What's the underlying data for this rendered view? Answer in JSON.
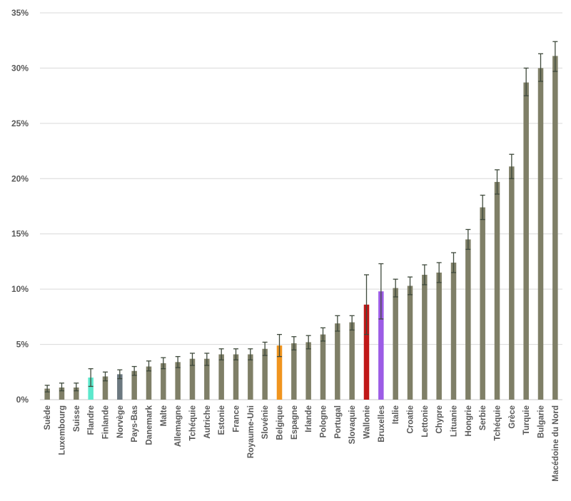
{
  "chart_data": {
    "type": "bar",
    "title": "",
    "xlabel": "",
    "ylabel": "",
    "ylim": [
      0,
      35
    ],
    "yticks": [
      "0%",
      "5%",
      "10%",
      "15%",
      "20%",
      "25%",
      "30%",
      "35%"
    ],
    "ytick_values": [
      0,
      5,
      10,
      15,
      20,
      25,
      30,
      35
    ],
    "grid": true,
    "legend": "none",
    "default_color": "#7f7f67",
    "categories": [
      "Suède",
      "Luxembourg",
      "Suisse",
      "Flandre",
      "Finlande",
      "Norvège",
      "Pays-Bas",
      "Danemark",
      "Malte",
      "Allemagne",
      "Tchéquie",
      "Autriche",
      "Estonie",
      "France",
      "Royaume-Uni",
      "Slovénie",
      "Belgique",
      "Espagne",
      "Irlande",
      "Pologne",
      "Portugal",
      "Slovaquie",
      "Wallonie",
      "Bruxelles",
      "Italie",
      "Croatie",
      "Lettonie",
      "Chypre",
      "Lituanie",
      "Hongrie",
      "Serbie",
      "Tchéquie",
      "Grèce",
      "Turquie",
      "Bulgarie",
      "Macédoine du Nord"
    ],
    "values": [
      1.0,
      1.1,
      1.1,
      2.0,
      2.1,
      2.3,
      2.6,
      3.0,
      3.3,
      3.4,
      3.7,
      3.7,
      4.1,
      4.1,
      4.1,
      4.6,
      4.9,
      5.1,
      5.2,
      5.9,
      6.9,
      7.0,
      8.6,
      9.8,
      10.1,
      10.3,
      11.3,
      11.5,
      12.4,
      14.5,
      17.4,
      19.7,
      21.1,
      28.7,
      30.0,
      31.1
    ],
    "error_low": [
      0.7,
      0.8,
      0.8,
      1.2,
      1.7,
      1.9,
      2.2,
      2.6,
      2.8,
      2.9,
      3.1,
      3.1,
      3.6,
      3.6,
      3.6,
      4.0,
      3.9,
      4.5,
      4.6,
      5.3,
      6.2,
      6.3,
      5.9,
      7.3,
      9.3,
      9.5,
      10.4,
      10.6,
      11.5,
      13.6,
      16.3,
      18.6,
      20.0,
      27.5,
      28.8,
      29.7
    ],
    "error_high": [
      1.3,
      1.5,
      1.5,
      2.8,
      2.5,
      2.7,
      3.0,
      3.5,
      3.8,
      3.9,
      4.2,
      4.2,
      4.6,
      4.6,
      4.6,
      5.2,
      5.9,
      5.7,
      5.8,
      6.5,
      7.6,
      7.6,
      11.3,
      12.3,
      10.9,
      11.1,
      12.2,
      12.4,
      13.3,
      15.4,
      18.5,
      20.8,
      22.2,
      30.0,
      31.3,
      32.4
    ],
    "highlight_colors": {
      "Flandre": "#5ce8cc",
      "Norvège": "#6b7880",
      "Belgique": "#f0941e",
      "Wallonie": "#c01818",
      "Bruxelles": "#9c5ce6"
    }
  }
}
